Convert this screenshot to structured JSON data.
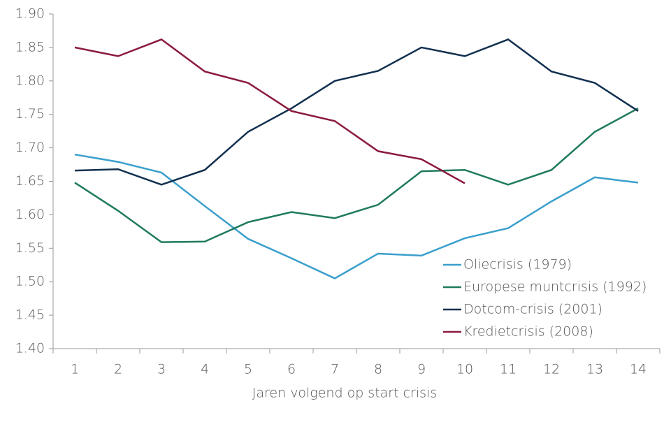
{
  "chart_data": {
    "type": "line",
    "xlabel": "Jaren volgend op start crisis",
    "categories": [
      "1",
      "2",
      "3",
      "4",
      "5",
      "6",
      "7",
      "8",
      "9",
      "10",
      "11",
      "12",
      "13",
      "14"
    ],
    "series": [
      {
        "name": "Oliecrisis (1979)",
        "color": "#3a9fcc",
        "values": [
          1.69,
          1.679,
          1.663,
          1.613,
          1.564,
          1.535,
          1.505,
          1.542,
          1.539,
          1.565,
          1.58,
          1.62,
          1.656,
          1.648
        ]
      },
      {
        "name": "Europese muntcrisis (1992)",
        "color": "#1f7a5f",
        "values": [
          1.648,
          1.606,
          1.559,
          1.56,
          1.589,
          1.604,
          1.595,
          1.615,
          1.665,
          1.667,
          1.645,
          1.667,
          1.724,
          1.759
        ]
      },
      {
        "name": "Dotcom-crisis (2001)",
        "color": "#12304f",
        "values": [
          1.666,
          1.668,
          1.645,
          1.667,
          1.724,
          1.759,
          1.8,
          1.815,
          1.85,
          1.837,
          1.862,
          1.814,
          1.797,
          1.755
        ]
      },
      {
        "name": "Kredietcrisis (2008)",
        "color": "#8b1a3c",
        "values": [
          1.85,
          1.837,
          1.862,
          1.814,
          1.797,
          1.755,
          1.74,
          1.695,
          1.683,
          1.647,
          null,
          null,
          null,
          null
        ]
      }
    ],
    "ylim": [
      1.4,
      1.9
    ],
    "yticks": [
      {
        "value": 1.4,
        "label": "1.40"
      },
      {
        "value": 1.45,
        "label": "1.45"
      },
      {
        "value": 1.5,
        "label": "1.50"
      },
      {
        "value": 1.55,
        "label": "1.55"
      },
      {
        "value": 1.6,
        "label": "1.60"
      },
      {
        "value": 1.65,
        "label": "1.65"
      },
      {
        "value": 1.7,
        "label": "1.70"
      },
      {
        "value": 1.75,
        "label": "1.75"
      },
      {
        "value": 1.8,
        "label": "1.80"
      },
      {
        "value": 1.85,
        "label": "1.85"
      },
      {
        "value": 1.9,
        "label": "1.90"
      }
    ],
    "legend": "lower right",
    "grid": false
  }
}
